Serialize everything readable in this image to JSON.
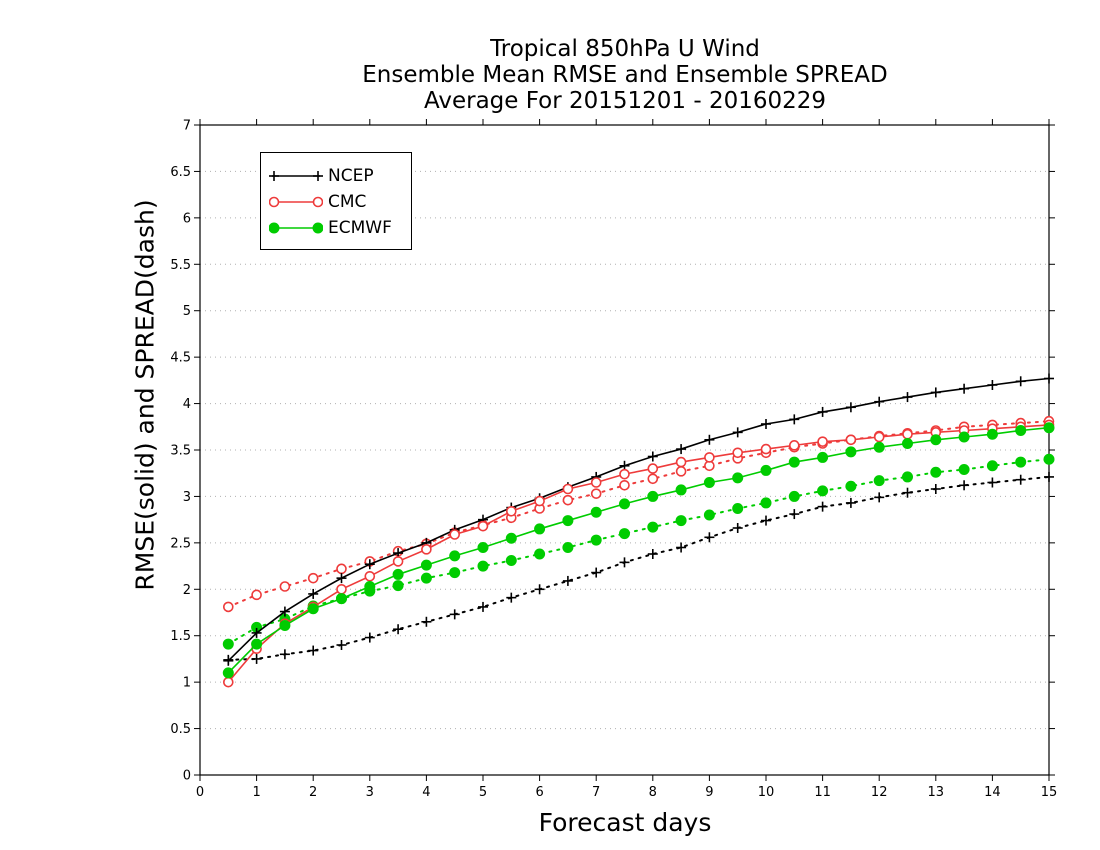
{
  "chart_data": {
    "type": "line",
    "title": [
      "Tropical 850hPa U Wind",
      "Ensemble Mean RMSE and Ensemble SPREAD",
      "Average For 20151201 - 20160229"
    ],
    "xlabel": "Forecast days",
    "ylabel": "RMSE(solid) and SPREAD(dash)",
    "xlim": [
      0,
      15
    ],
    "ylim": [
      0,
      7
    ],
    "xticks": [
      "0",
      "1",
      "2",
      "3",
      "4",
      "5",
      "6",
      "7",
      "8",
      "9",
      "10",
      "11",
      "12",
      "13",
      "14",
      "15"
    ],
    "yticks": [
      "0",
      "0.5",
      "1",
      "1.5",
      "2",
      "2.5",
      "3",
      "3.5",
      "4",
      "4.5",
      "5",
      "5.5",
      "6",
      "6.5",
      "7"
    ],
    "grid": true,
    "legend_position": "top-left",
    "x": [
      0.5,
      1,
      1.5,
      2,
      2.5,
      3,
      3.5,
      4,
      4.5,
      5,
      5.5,
      6,
      6.5,
      7,
      7.5,
      8,
      8.5,
      9,
      9.5,
      10,
      10.5,
      11,
      11.5,
      12,
      12.5,
      13,
      13.5,
      14,
      14.5,
      15
    ],
    "series": [
      {
        "name": "NCEP",
        "color": "#000000",
        "marker": "plus",
        "style": "solid",
        "values": [
          1.23,
          1.53,
          1.76,
          1.95,
          2.12,
          2.27,
          2.39,
          2.5,
          2.64,
          2.75,
          2.88,
          2.98,
          3.1,
          3.21,
          3.33,
          3.43,
          3.51,
          3.61,
          3.69,
          3.78,
          3.83,
          3.91,
          3.96,
          4.02,
          4.07,
          4.12,
          4.16,
          4.2,
          4.24,
          4.27
        ]
      },
      {
        "name": "NCEP",
        "color": "#000000",
        "marker": "plus",
        "style": "dash",
        "values": [
          1.24,
          1.25,
          1.3,
          1.34,
          1.4,
          1.48,
          1.57,
          1.65,
          1.73,
          1.81,
          1.91,
          2.0,
          2.09,
          2.18,
          2.29,
          2.38,
          2.45,
          2.56,
          2.66,
          2.74,
          2.81,
          2.89,
          2.93,
          2.99,
          3.04,
          3.08,
          3.12,
          3.15,
          3.18,
          3.21
        ]
      },
      {
        "name": "CMC",
        "color": "#ee3b3b",
        "marker": "open-circle",
        "style": "solid",
        "values": [
          1.0,
          1.36,
          1.63,
          1.81,
          2.0,
          2.14,
          2.3,
          2.43,
          2.59,
          2.68,
          2.84,
          2.95,
          3.08,
          3.15,
          3.24,
          3.3,
          3.37,
          3.42,
          3.47,
          3.51,
          3.55,
          3.59,
          3.61,
          3.64,
          3.67,
          3.69,
          3.71,
          3.73,
          3.75,
          3.77
        ]
      },
      {
        "name": "CMC",
        "color": "#ee3b3b",
        "marker": "open-circle",
        "style": "dash",
        "values": [
          1.81,
          1.94,
          2.03,
          2.12,
          2.22,
          2.3,
          2.41,
          2.49,
          2.61,
          2.69,
          2.77,
          2.87,
          2.96,
          3.03,
          3.12,
          3.19,
          3.27,
          3.33,
          3.41,
          3.47,
          3.53,
          3.57,
          3.61,
          3.65,
          3.68,
          3.71,
          3.75,
          3.77,
          3.79,
          3.81
        ]
      },
      {
        "name": "ECMWF",
        "color": "#00cc00",
        "marker": "filled-circle",
        "style": "solid",
        "values": [
          1.1,
          1.41,
          1.61,
          1.79,
          1.9,
          2.03,
          2.16,
          2.26,
          2.36,
          2.45,
          2.55,
          2.65,
          2.74,
          2.83,
          2.92,
          3.0,
          3.07,
          3.15,
          3.2,
          3.28,
          3.37,
          3.42,
          3.48,
          3.53,
          3.57,
          3.61,
          3.64,
          3.67,
          3.71,
          3.74
        ]
      },
      {
        "name": "ECMWF",
        "color": "#00cc00",
        "marker": "filled-circle",
        "style": "dash",
        "values": [
          1.41,
          1.59,
          1.68,
          1.82,
          1.9,
          1.98,
          2.04,
          2.12,
          2.18,
          2.25,
          2.31,
          2.38,
          2.45,
          2.53,
          2.6,
          2.67,
          2.74,
          2.8,
          2.87,
          2.93,
          3.0,
          3.06,
          3.11,
          3.17,
          3.21,
          3.26,
          3.29,
          3.33,
          3.37,
          3.4
        ]
      }
    ],
    "legend": [
      {
        "label": "NCEP",
        "color": "#000000",
        "marker": "plus"
      },
      {
        "label": "CMC",
        "color": "#ee3b3b",
        "marker": "open-circle"
      },
      {
        "label": "ECMWF",
        "color": "#00cc00",
        "marker": "filled-circle"
      }
    ]
  }
}
